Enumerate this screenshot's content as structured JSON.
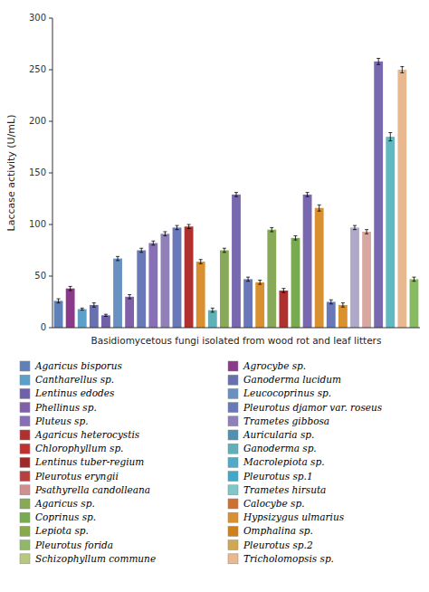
{
  "chart_data": {
    "type": "bar",
    "ylabel": "Laccase activity (U/mL)",
    "xlabel": "Basidiomycetous fungi isolated from wood rot and leaf litters",
    "categories": [
      null,
      null,
      null,
      null,
      null,
      null,
      null,
      null,
      null,
      null,
      null,
      null,
      null,
      null,
      null,
      null,
      null,
      null,
      null,
      null,
      null,
      null,
      null,
      null,
      null,
      null,
      null,
      null,
      null,
      null,
      null
    ],
    "values": [
      26,
      38,
      18,
      22,
      12,
      67,
      30,
      75,
      82,
      91,
      97,
      98,
      64,
      17,
      75,
      129,
      47,
      44,
      95,
      36,
      87,
      129,
      116,
      25,
      22,
      97,
      93,
      258,
      185,
      250,
      47
    ],
    "errors": [
      2,
      2,
      1,
      2,
      1,
      2,
      2,
      2,
      2,
      2,
      2,
      2,
      2,
      2,
      2,
      2,
      2,
      2,
      2,
      2,
      2,
      2,
      3,
      2,
      2,
      2,
      2,
      3,
      4,
      3,
      2
    ],
    "colors": [
      "#6080b8",
      "#8b3a8b",
      "#5aa0c8",
      "#6870b0",
      "#7060a8",
      "#6890c0",
      "#8060a8",
      "#6878b8",
      "#8870b8",
      "#9080b8",
      "#6878b8",
      "#b03030",
      "#d89030",
      "#60b0b8",
      "#88aa58",
      "#7868b0",
      "#6878b8",
      "#d89030",
      "#88aa58",
      "#b03030",
      "#78aa50",
      "#7868b0",
      "#d89030",
      "#6878b8",
      "#d89030",
      "#b0a8c8",
      "#d8a8a0",
      "#7868b0",
      "#60b8c0",
      "#e8b890",
      "#88bb60"
    ],
    "ylim": [
      0,
      300
    ],
    "yticks": [
      0,
      50,
      100,
      150,
      200,
      250,
      300
    ],
    "grid": false,
    "tick_labels": "y",
    "legend": "bottom",
    "legend_entries": [
      {
        "label": "Agaricus bisporus",
        "color": "#6080b8"
      },
      {
        "label": "Agrocybe sp.",
        "color": "#8b3a8b"
      },
      {
        "label": "Cantharellus sp.",
        "color": "#5aa0c8"
      },
      {
        "label": "Ganoderma lucidum",
        "color": "#6870b0"
      },
      {
        "label": "Lentinus edodes",
        "color": "#7060a8"
      },
      {
        "label": "Leucocoprinus sp.",
        "color": "#6890c0"
      },
      {
        "label": "Phellinus sp.",
        "color": "#8060a8"
      },
      {
        "label": "Pleurotus djamor var. roseus",
        "color": "#6878b8"
      },
      {
        "label": "Pluteus sp.",
        "color": "#8870b8"
      },
      {
        "label": "Trametes gibbosa",
        "color": "#9080b8"
      },
      {
        "label": "Agaricus heterocystis",
        "color": "#b03030"
      },
      {
        "label": "Auricularia sp.",
        "color": "#5090b0"
      },
      {
        "label": "Chlorophyllum sp.",
        "color": "#c03030"
      },
      {
        "label": "Ganoderma sp.",
        "color": "#60b0b8"
      },
      {
        "label": "Lentinus tuber-regium",
        "color": "#a02828"
      },
      {
        "label": "Macrolepiota sp.",
        "color": "#50aac8"
      },
      {
        "label": "Pleurotus eryngii",
        "color": "#b84040"
      },
      {
        "label": "Pleurotus sp.1",
        "color": "#40a8c8"
      },
      {
        "label": "Psathyrella candolleana",
        "color": "#d09090"
      },
      {
        "label": "Trametes hirsuta",
        "color": "#80c8c8"
      },
      {
        "label": "Agaricus sp.",
        "color": "#88aa58"
      },
      {
        "label": "Calocybe sp.",
        "color": "#d07030"
      },
      {
        "label": "Coprinus sp.",
        "color": "#78aa50"
      },
      {
        "label": "Hypsizygus ulmarius",
        "color": "#d89030"
      },
      {
        "label": "Lepiota sp.",
        "color": "#88aa48"
      },
      {
        "label": "Omphalina sp.",
        "color": "#d08018"
      },
      {
        "label": "Pleurotus forida",
        "color": "#90b868"
      },
      {
        "label": "Pleurotus sp.2",
        "color": "#d0a850"
      },
      {
        "label": "Schizophyllum commune",
        "color": "#b8c880"
      },
      {
        "label": "Tricholomopsis sp.",
        "color": "#e8b890"
      }
    ]
  }
}
